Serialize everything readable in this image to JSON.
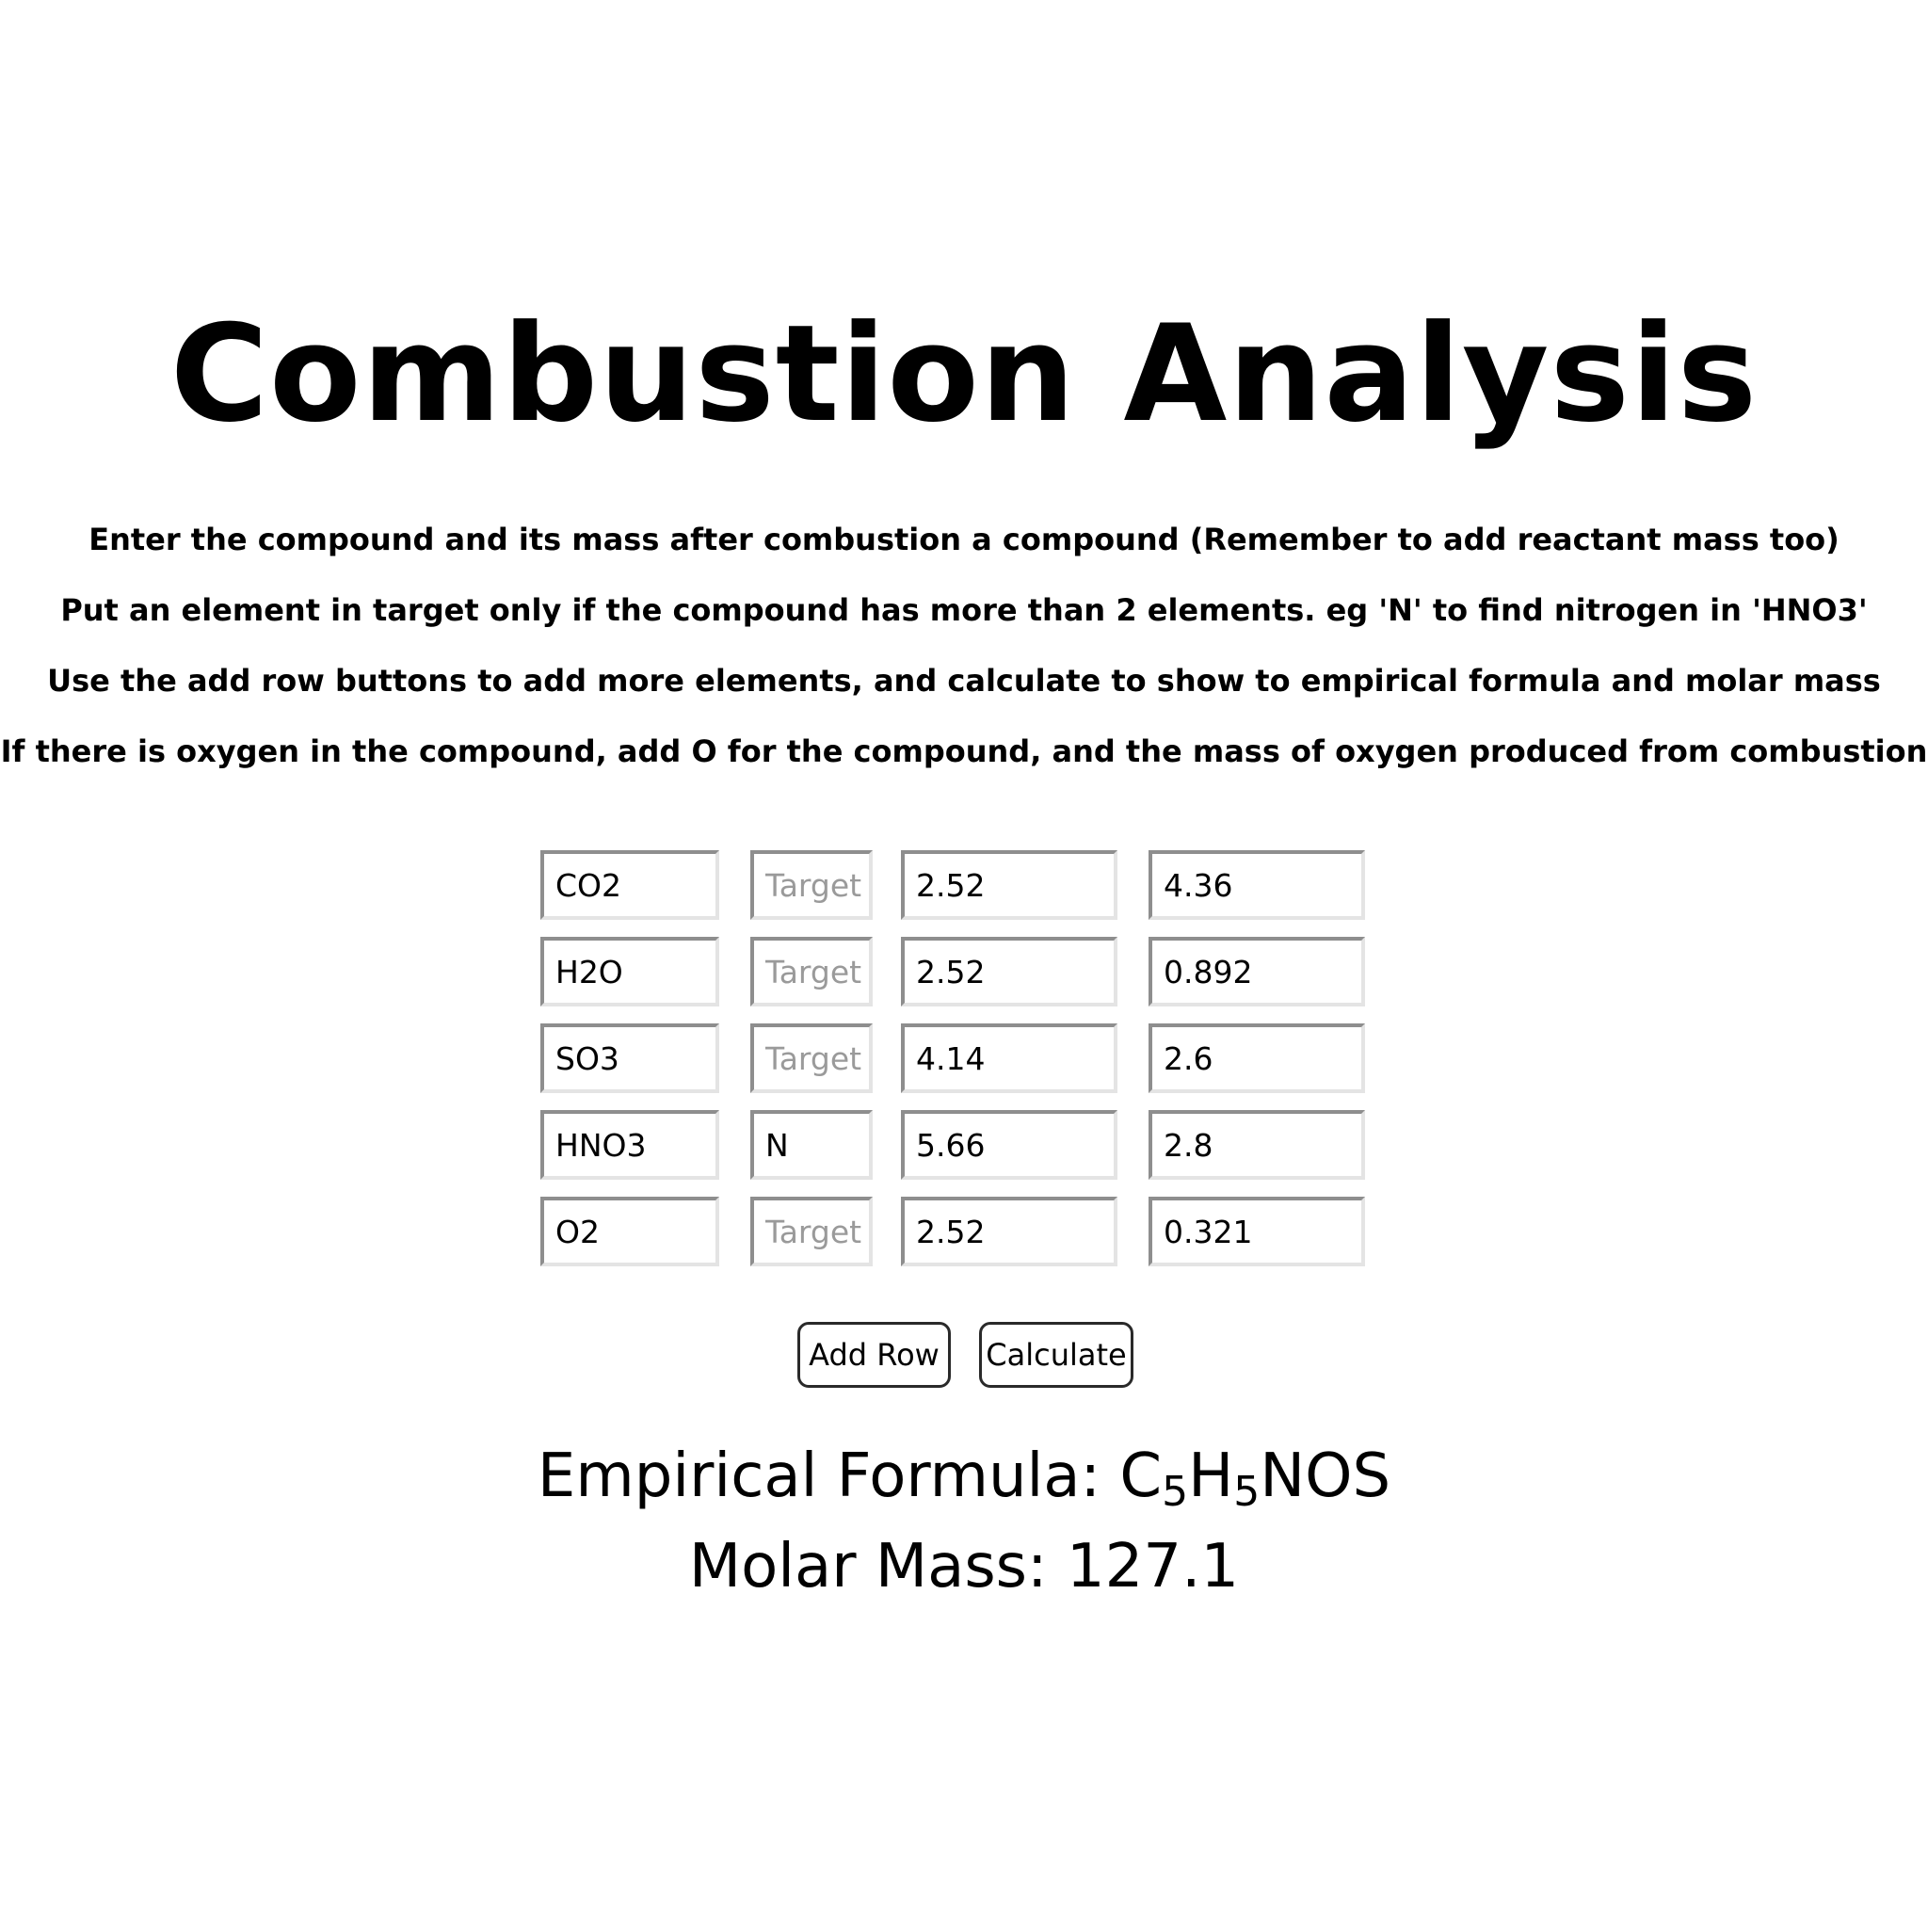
{
  "page": {
    "title": "Combustion Analysis",
    "instructions": [
      "Enter the compound and its mass after combustion a compound (Remember to add reactant mass too)",
      "Put an element in target only if the compound has more than 2 elements. eg 'N' to find nitrogen in 'HNO3'",
      "Use the add row buttons to add more elements, and calculate to show to empirical formula and molar mass",
      "If there is oxygen in the compound, add O for the compound, and the mass of oxygen produced from combustion"
    ]
  },
  "rows": [
    {
      "compound": "CO2",
      "target": "",
      "target_placeholder": "Target",
      "mass1": "2.52",
      "mass2": "4.36"
    },
    {
      "compound": "H2O",
      "target": "",
      "target_placeholder": "Target",
      "mass1": "2.52",
      "mass2": "0.892"
    },
    {
      "compound": "SO3",
      "target": "",
      "target_placeholder": "Target",
      "mass1": "4.14",
      "mass2": "2.6"
    },
    {
      "compound": "HNO3",
      "target": "N",
      "target_placeholder": "Target",
      "mass1": "5.66",
      "mass2": "2.8"
    },
    {
      "compound": "O2",
      "target": "",
      "target_placeholder": "Target",
      "mass1": "2.52",
      "mass2": "0.321"
    }
  ],
  "buttons": {
    "add_row": "Add Row",
    "calculate": "Calculate"
  },
  "results": {
    "empirical_label": "Empirical Formula:",
    "formula_parts": [
      {
        "el": "C",
        "sub": "5"
      },
      {
        "el": "H",
        "sub": "5"
      },
      {
        "el": "NOS",
        "sub": ""
      }
    ],
    "molar_label": "Molar Mass:",
    "molar_value": "127.1"
  }
}
